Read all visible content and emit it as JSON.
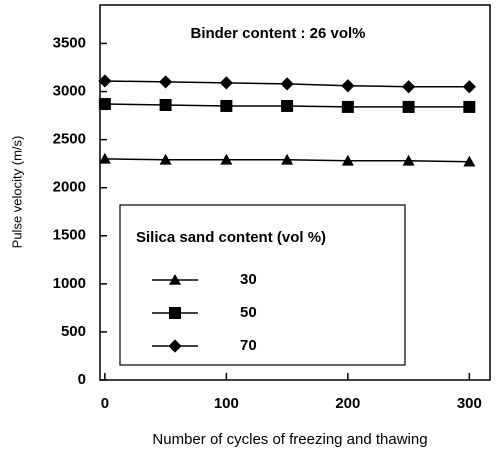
{
  "chart_data": {
    "type": "line",
    "annotation": "Binder content : 26 vol%",
    "x_label": "Number of cycles of freezing and thawing",
    "y_label": "Pulse velocity (m/s)",
    "legend_title": "Silica sand content (vol %)",
    "x": [
      0,
      50,
      100,
      150,
      200,
      250,
      300
    ],
    "series": [
      {
        "name": "30",
        "color": "#000000",
        "marker": "triangle",
        "values": [
          2300,
          2290,
          2290,
          2290,
          2280,
          2280,
          2270
        ]
      },
      {
        "name": "50",
        "color": "#000000",
        "marker": "square",
        "values": [
          2870,
          2860,
          2850,
          2850,
          2840,
          2840,
          2840
        ]
      },
      {
        "name": "70",
        "color": "#000000",
        "marker": "diamond",
        "values": [
          3110,
          3100,
          3090,
          3080,
          3060,
          3050,
          3050
        ]
      }
    ],
    "xlim": [
      -4,
      317
    ],
    "xticks": [
      0,
      100,
      200,
      300
    ],
    "ylim": [
      0,
      3900
    ],
    "yticks": [
      0,
      500,
      1000,
      1500,
      2000,
      2500,
      3000,
      3500
    ]
  }
}
